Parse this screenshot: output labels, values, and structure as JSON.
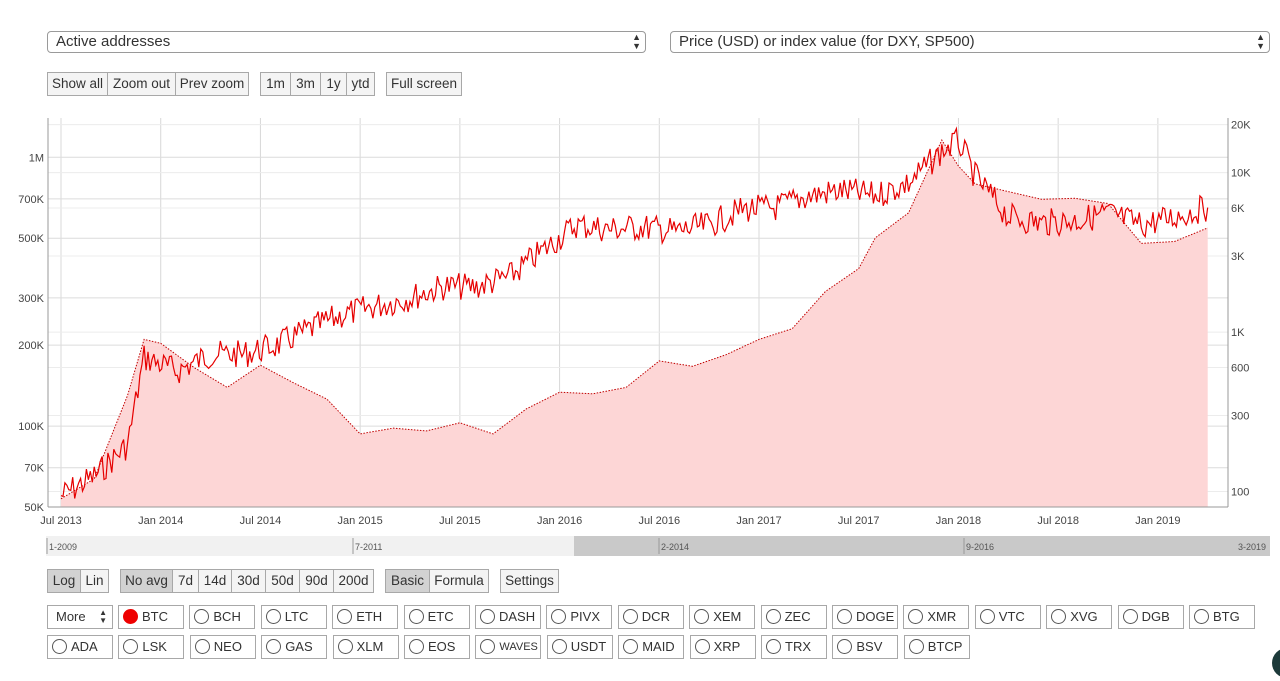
{
  "selects": {
    "metric": "Active addresses",
    "price": "Price (USD) or index value (for DXY, SP500)"
  },
  "zoom_buttons": [
    "Show all",
    "Zoom out",
    "Prev zoom"
  ],
  "range_buttons": [
    "1m",
    "3m",
    "1y",
    "ytd"
  ],
  "fullscreen_label": "Full screen",
  "scale_buttons": [
    "Log",
    "Lin"
  ],
  "avg_buttons": [
    "No avg",
    "7d",
    "14d",
    "30d",
    "50d",
    "90d",
    "200d"
  ],
  "mode_buttons": [
    "Basic",
    "Formula"
  ],
  "settings_label": "Settings",
  "navigator_labels": [
    "1-2009",
    "7-2011",
    "2-2014",
    "9-2016",
    "3-2019"
  ],
  "coins_row1": [
    "BTC",
    "BCH",
    "LTC",
    "ETH",
    "ETC",
    "DASH",
    "PIVX",
    "DCR",
    "XEM",
    "ZEC",
    "DOGE",
    "XMR",
    "VTC",
    "XVG",
    "DGB",
    "BTG"
  ],
  "coins_row2": [
    "ADA",
    "LSK",
    "NEO",
    "GAS",
    "XLM",
    "EOS",
    "WAVES",
    "USDT",
    "MAID",
    "XRP",
    "TRX",
    "BSV",
    "BTCP"
  ],
  "selected_coin": "BTC",
  "colors": {
    "series": "#e60000",
    "fill": "#fdd6d6",
    "accent_radio": "#e00000"
  },
  "chart_data": {
    "type": "line",
    "x_labels": [
      "Jul 2013",
      "Jan 2014",
      "Jul 2014",
      "Jan 2015",
      "Jul 2015",
      "Jan 2016",
      "Jul 2016",
      "Jan 2017",
      "Jul 2017",
      "Jan 2018",
      "Jul 2018",
      "Jan 2019"
    ],
    "left_axis": {
      "scale": "log",
      "ticks": [
        "50K",
        "70K",
        "100K",
        "200K",
        "300K",
        "500K",
        "700K",
        "1M"
      ],
      "range": [
        50000,
        1400000
      ]
    },
    "right_axis": {
      "scale": "log",
      "ticks": [
        "100",
        "300",
        "600",
        "1K",
        "3K",
        "6K",
        "10K",
        "20K"
      ],
      "range": [
        80,
        22000
      ]
    },
    "grid": true,
    "series": [
      {
        "axis": "left",
        "x": [
          "2013-07",
          "2013-09",
          "2013-11",
          "2013-12",
          "2014-02",
          "2014-04",
          "2014-06",
          "2014-08",
          "2014-10",
          "2014-12",
          "2015-02",
          "2015-04",
          "2015-06",
          "2015-08",
          "2015-10",
          "2015-12",
          "2016-02",
          "2016-04",
          "2016-06",
          "2016-08",
          "2016-10",
          "2016-12",
          "2017-02",
          "2017-04",
          "2017-06",
          "2017-08",
          "2017-10",
          "2017-12",
          "2018-01",
          "2018-02",
          "2018-04",
          "2018-06",
          "2018-08",
          "2018-10",
          "2018-12",
          "2019-02",
          "2019-04"
        ],
        "values": [
          55000,
          65000,
          85000,
          180000,
          160000,
          185000,
          185000,
          200000,
          230000,
          260000,
          280000,
          300000,
          330000,
          330000,
          360000,
          450000,
          560000,
          540000,
          550000,
          530000,
          560000,
          640000,
          650000,
          720000,
          750000,
          720000,
          800000,
          1050000,
          1150000,
          850000,
          600000,
          570000,
          580000,
          620000,
          560000,
          600000,
          650000
        ]
      },
      {
        "axis": "right",
        "x": [
          "2013-07",
          "2013-09",
          "2013-11",
          "2013-12",
          "2014-01",
          "2014-03",
          "2014-05",
          "2014-07",
          "2014-09",
          "2014-11",
          "2015-01",
          "2015-03",
          "2015-05",
          "2015-07",
          "2015-09",
          "2015-11",
          "2016-01",
          "2016-03",
          "2016-05",
          "2016-07",
          "2016-09",
          "2016-11",
          "2017-01",
          "2017-03",
          "2017-05",
          "2017-07",
          "2017-08",
          "2017-10",
          "2017-12",
          "2018-01",
          "2018-02",
          "2018-04",
          "2018-06",
          "2018-08",
          "2018-10",
          "2018-12",
          "2019-02",
          "2019-04"
        ],
        "values": [
          90,
          120,
          400,
          900,
          850,
          600,
          450,
          620,
          480,
          380,
          230,
          250,
          240,
          270,
          230,
          330,
          420,
          410,
          450,
          660,
          610,
          720,
          900,
          1050,
          1800,
          2500,
          3900,
          5600,
          16000,
          11000,
          8500,
          7600,
          6800,
          6900,
          6400,
          3600,
          3700,
          4500
        ]
      }
    ]
  }
}
